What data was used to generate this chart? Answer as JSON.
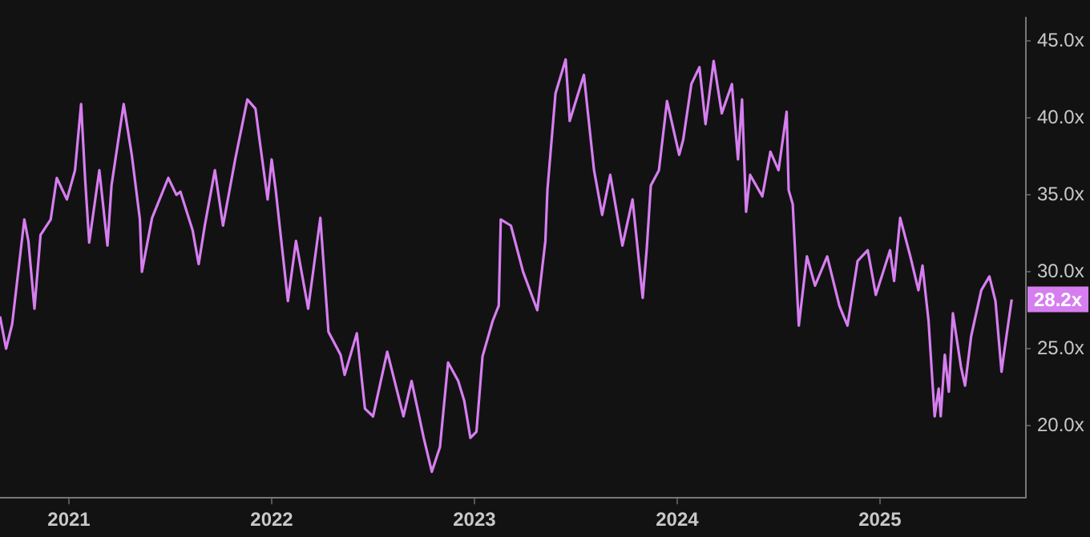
{
  "chart_data": {
    "type": "line",
    "x": [
      2020.66,
      2020.69,
      2020.72,
      2020.78,
      2020.8,
      2020.83,
      2020.86,
      2020.91,
      2020.94,
      2020.99,
      2021.03,
      2021.06,
      2021.08,
      2021.1,
      2021.15,
      2021.19,
      2021.21,
      2021.27,
      2021.31,
      2021.35,
      2021.36,
      2021.41,
      2021.49,
      2021.53,
      2021.55,
      2021.61,
      2021.64,
      2021.67,
      2021.72,
      2021.76,
      2021.82,
      2021.88,
      2021.92,
      2021.94,
      2021.98,
      2022.0,
      2022.02,
      2022.08,
      2022.12,
      2022.18,
      2022.24,
      2022.28,
      2022.34,
      2022.36,
      2022.42,
      2022.46,
      2022.5,
      2022.57,
      2022.65,
      2022.69,
      2022.75,
      2022.79,
      2022.83,
      2022.87,
      2022.92,
      2022.95,
      2022.98,
      2023.01,
      2023.04,
      2023.09,
      2023.12,
      2023.13,
      2023.18,
      2023.24,
      2023.31,
      2023.35,
      2023.36,
      2023.4,
      2023.45,
      2023.47,
      2023.54,
      2023.56,
      2023.59,
      2023.63,
      2023.67,
      2023.73,
      2023.78,
      2023.83,
      2023.85,
      2023.87,
      2023.91,
      2023.95,
      2024.01,
      2024.03,
      2024.07,
      2024.11,
      2024.14,
      2024.18,
      2024.22,
      2024.27,
      2024.3,
      2024.32,
      2024.34,
      2024.36,
      2024.42,
      2024.46,
      2024.5,
      2024.54,
      2024.55,
      2024.57,
      2024.6,
      2024.64,
      2024.68,
      2024.74,
      2024.8,
      2024.84,
      2024.89,
      2024.94,
      2024.98,
      2025.05,
      2025.07,
      2025.1,
      2025.15,
      2025.19,
      2025.21,
      2025.24,
      2025.27,
      2025.29,
      2025.3,
      2025.32,
      2025.34,
      2025.36,
      2025.4,
      2025.42,
      2025.45,
      2025.5,
      2025.54,
      2025.57,
      2025.6,
      2025.61,
      2025.65
    ],
    "series": [
      {
        "color": "#d67ef0",
        "value_labels": [
          null,
          null,
          null,
          null,
          null,
          null,
          null,
          null,
          null,
          null,
          null,
          null,
          null,
          null,
          null,
          null,
          null,
          null,
          null,
          null,
          null,
          null,
          null,
          null,
          null,
          null,
          null,
          null,
          null,
          null,
          null,
          null,
          null,
          null,
          null,
          null,
          null,
          null,
          null,
          null,
          null,
          null,
          null,
          null,
          null,
          null,
          null,
          null,
          null,
          null,
          null,
          null,
          null,
          null,
          null,
          null,
          null,
          null,
          null,
          null,
          null,
          null,
          null,
          null,
          null,
          null,
          null,
          null,
          null,
          null,
          null,
          null,
          null,
          null,
          null,
          null,
          null,
          null,
          null,
          null,
          null,
          null,
          null,
          null,
          null,
          null,
          null,
          null,
          null,
          null,
          null,
          null,
          null,
          null,
          null,
          null,
          null,
          null,
          null,
          null,
          null,
          null,
          null,
          null,
          null,
          null,
          null,
          null,
          null,
          null,
          null,
          null,
          null,
          null,
          null,
          null,
          null,
          null,
          null,
          null,
          null,
          null,
          null,
          null,
          null,
          null,
          null,
          null,
          null,
          null,
          "28.2x"
        ],
        "values": [
          27.1,
          25.0,
          26.6,
          33.4,
          32.0,
          27.6,
          32.4,
          33.4,
          36.1,
          34.7,
          36.6,
          40.9,
          36.0,
          31.9,
          36.6,
          31.7,
          35.6,
          40.9,
          37.6,
          33.4,
          30.0,
          33.5,
          36.1,
          35.0,
          35.2,
          32.7,
          30.5,
          33.0,
          36.6,
          33.0,
          37.3,
          41.2,
          40.6,
          38.6,
          34.7,
          37.3,
          35.3,
          28.1,
          32.0,
          27.6,
          33.5,
          26.1,
          24.6,
          23.3,
          26.0,
          21.1,
          20.6,
          24.8,
          20.6,
          22.9,
          19.2,
          17.0,
          18.6,
          24.1,
          22.9,
          21.6,
          19.2,
          19.6,
          24.5,
          26.8,
          27.8,
          33.4,
          33.0,
          30.0,
          27.5,
          32.0,
          35.3,
          41.6,
          43.8,
          39.8,
          42.8,
          40.3,
          36.6,
          33.7,
          36.3,
          31.7,
          34.7,
          28.3,
          31.5,
          35.6,
          36.6,
          41.1,
          37.6,
          38.6,
          42.2,
          43.3,
          39.6,
          43.7,
          40.3,
          42.2,
          37.3,
          41.2,
          33.9,
          36.3,
          34.9,
          37.8,
          36.6,
          40.4,
          35.3,
          34.4,
          26.5,
          31.0,
          29.1,
          31.0,
          27.8,
          26.5,
          30.7,
          31.4,
          28.5,
          31.4,
          29.4,
          33.5,
          31.0,
          28.8,
          30.4,
          26.8,
          20.6,
          22.4,
          20.6,
          24.6,
          22.2,
          27.3,
          23.8,
          22.6,
          25.8,
          28.8,
          29.7,
          28.1,
          23.5,
          24.5,
          28.2
        ]
      }
    ],
    "xlim": [
      2020.66,
      2025.72
    ],
    "xticks": [
      2021,
      2022,
      2023,
      2024,
      2025
    ],
    "ylim": [
      15.3,
      46.5
    ],
    "yticks": [
      {
        "value": 20,
        "label": "20.0x"
      },
      {
        "value": 25,
        "label": "25.0x"
      },
      {
        "value": 30,
        "label": "30.0x"
      },
      {
        "value": 35,
        "label": "35.0x"
      },
      {
        "value": 40,
        "label": "40.0x"
      },
      {
        "value": 45,
        "label": "45.0x"
      }
    ],
    "grid": false,
    "legend": false,
    "marker": "none",
    "line_style": "solid"
  }
}
